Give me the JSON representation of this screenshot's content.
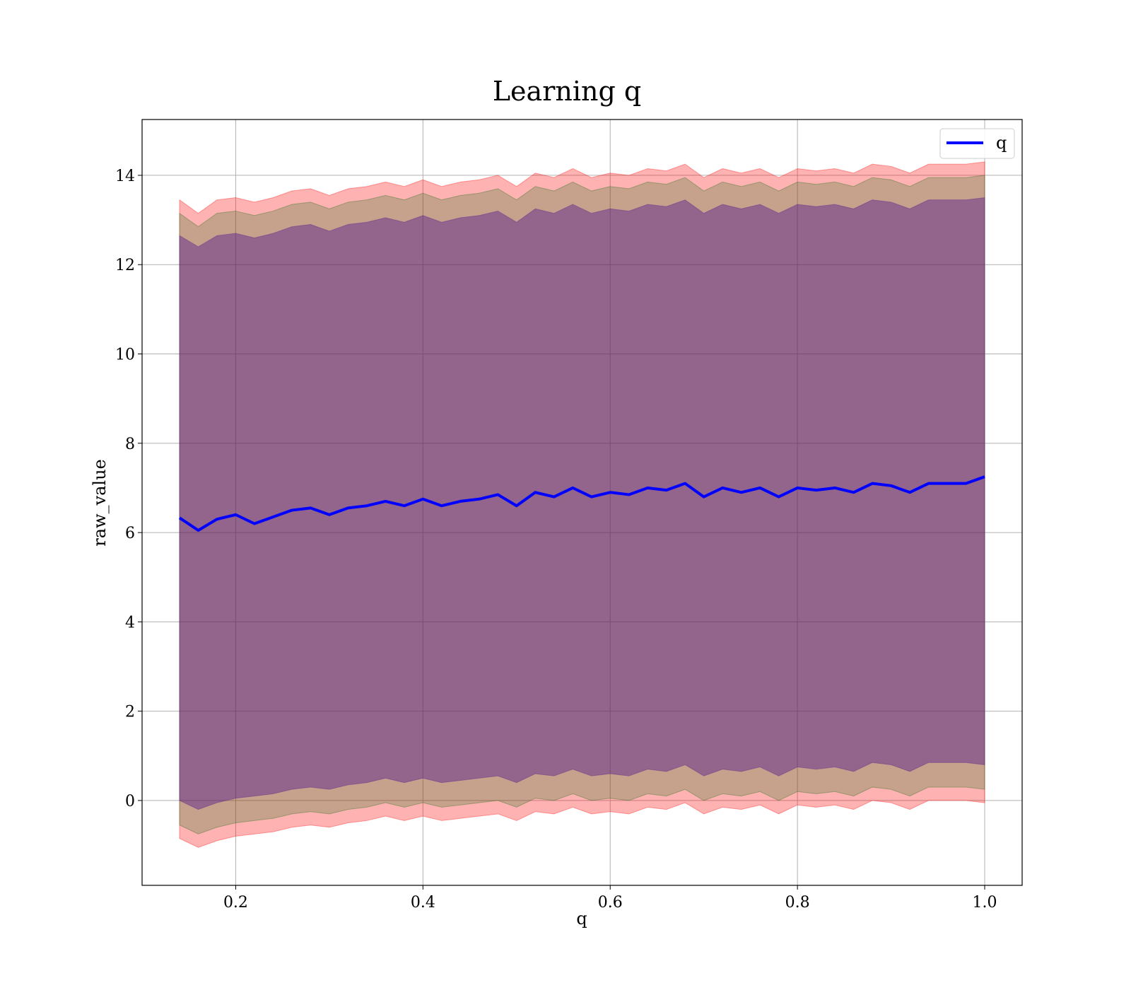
{
  "chart_data": {
    "type": "line",
    "title": "Learning q",
    "xlabel": "q",
    "ylabel": "raw_value",
    "xlim": [
      0.1,
      1.04
    ],
    "ylim": [
      -1.9,
      15.25
    ],
    "xticks": [
      0.2,
      0.4,
      0.6,
      0.8,
      1.0
    ],
    "xtick_labels": [
      "0.2",
      "0.4",
      "0.6",
      "0.8",
      "1.0"
    ],
    "yticks": [
      0,
      2,
      4,
      6,
      8,
      10,
      12,
      14
    ],
    "ytick_labels": [
      "0",
      "2",
      "4",
      "6",
      "8",
      "10",
      "12",
      "14"
    ],
    "grid": true,
    "legend": {
      "position": "top-right",
      "entries": [
        "q"
      ]
    },
    "series": [
      {
        "name": "q",
        "color": "#0000ff",
        "x": [
          0.14,
          0.16,
          0.18,
          0.2,
          0.22,
          0.24,
          0.26,
          0.28,
          0.3,
          0.32,
          0.34,
          0.36,
          0.38,
          0.4,
          0.42,
          0.44,
          0.46,
          0.48,
          0.5,
          0.52,
          0.54,
          0.56,
          0.58,
          0.6,
          0.62,
          0.64,
          0.66,
          0.68,
          0.7,
          0.72,
          0.74,
          0.76,
          0.78,
          0.8,
          0.82,
          0.84,
          0.86,
          0.88,
          0.9,
          0.92,
          0.94,
          0.96,
          0.98,
          1.0
        ],
        "y": [
          6.33,
          6.05,
          6.3,
          6.4,
          6.2,
          6.35,
          6.5,
          6.55,
          6.4,
          6.55,
          6.6,
          6.7,
          6.6,
          6.75,
          6.6,
          6.7,
          6.75,
          6.85,
          6.6,
          6.9,
          6.8,
          7.0,
          6.8,
          6.9,
          6.85,
          7.0,
          6.95,
          7.1,
          6.8,
          7.0,
          6.9,
          7.0,
          6.8,
          7.0,
          6.95,
          7.0,
          6.9,
          7.1,
          7.05,
          6.9,
          7.1,
          7.1,
          7.1,
          7.25
        ]
      }
    ],
    "bands": [
      {
        "color": "#ff0000",
        "opacity": 0.3,
        "x": [
          0.14,
          0.16,
          0.18,
          0.2,
          0.22,
          0.24,
          0.26,
          0.28,
          0.3,
          0.32,
          0.34,
          0.36,
          0.38,
          0.4,
          0.42,
          0.44,
          0.46,
          0.48,
          0.5,
          0.52,
          0.54,
          0.56,
          0.58,
          0.6,
          0.62,
          0.64,
          0.66,
          0.68,
          0.7,
          0.72,
          0.74,
          0.76,
          0.78,
          0.8,
          0.82,
          0.84,
          0.86,
          0.88,
          0.9,
          0.92,
          0.94,
          0.96,
          0.98,
          1.0
        ],
        "lower": [
          -0.85,
          -1.05,
          -0.9,
          -0.8,
          -0.75,
          -0.7,
          -0.6,
          -0.55,
          -0.6,
          -0.5,
          -0.45,
          -0.35,
          -0.45,
          -0.35,
          -0.45,
          -0.4,
          -0.35,
          -0.3,
          -0.45,
          -0.25,
          -0.3,
          -0.15,
          -0.3,
          -0.25,
          -0.3,
          -0.15,
          -0.2,
          -0.05,
          -0.3,
          -0.15,
          -0.2,
          -0.1,
          -0.3,
          -0.1,
          -0.15,
          -0.1,
          -0.2,
          0.0,
          -0.05,
          -0.2,
          0.0,
          0.0,
          0.0,
          -0.05
        ],
        "upper": [
          13.45,
          13.15,
          13.45,
          13.5,
          13.4,
          13.5,
          13.65,
          13.7,
          13.55,
          13.7,
          13.75,
          13.85,
          13.75,
          13.9,
          13.75,
          13.85,
          13.9,
          14.0,
          13.75,
          14.05,
          13.95,
          14.15,
          13.95,
          14.05,
          14.0,
          14.15,
          14.1,
          14.25,
          13.95,
          14.15,
          14.05,
          14.15,
          13.95,
          14.15,
          14.1,
          14.15,
          14.05,
          14.25,
          14.2,
          14.05,
          14.25,
          14.25,
          14.25,
          14.3
        ]
      },
      {
        "color": "#1a6f1a",
        "opacity": 0.25,
        "x": [
          0.14,
          0.16,
          0.18,
          0.2,
          0.22,
          0.24,
          0.26,
          0.28,
          0.3,
          0.32,
          0.34,
          0.36,
          0.38,
          0.4,
          0.42,
          0.44,
          0.46,
          0.48,
          0.5,
          0.52,
          0.54,
          0.56,
          0.58,
          0.6,
          0.62,
          0.64,
          0.66,
          0.68,
          0.7,
          0.72,
          0.74,
          0.76,
          0.78,
          0.8,
          0.82,
          0.84,
          0.86,
          0.88,
          0.9,
          0.92,
          0.94,
          0.96,
          0.98,
          1.0
        ],
        "lower": [
          -0.55,
          -0.75,
          -0.6,
          -0.5,
          -0.45,
          -0.4,
          -0.3,
          -0.25,
          -0.3,
          -0.2,
          -0.15,
          -0.05,
          -0.15,
          -0.05,
          -0.15,
          -0.1,
          -0.05,
          0.0,
          -0.15,
          0.05,
          0.0,
          0.15,
          0.0,
          0.05,
          0.0,
          0.15,
          0.1,
          0.25,
          0.0,
          0.15,
          0.1,
          0.2,
          0.0,
          0.2,
          0.15,
          0.2,
          0.1,
          0.3,
          0.25,
          0.1,
          0.3,
          0.3,
          0.3,
          0.25
        ],
        "upper": [
          13.15,
          12.85,
          13.15,
          13.2,
          13.1,
          13.2,
          13.35,
          13.4,
          13.25,
          13.4,
          13.45,
          13.55,
          13.45,
          13.6,
          13.45,
          13.55,
          13.6,
          13.7,
          13.45,
          13.75,
          13.65,
          13.85,
          13.65,
          13.75,
          13.7,
          13.85,
          13.8,
          13.95,
          13.65,
          13.85,
          13.75,
          13.85,
          13.65,
          13.85,
          13.8,
          13.85,
          13.75,
          13.95,
          13.9,
          13.75,
          13.95,
          13.95,
          13.95,
          14.0
        ]
      },
      {
        "color": "#551a8b",
        "opacity": 0.45,
        "x": [
          0.14,
          0.16,
          0.18,
          0.2,
          0.22,
          0.24,
          0.26,
          0.28,
          0.3,
          0.32,
          0.34,
          0.36,
          0.38,
          0.4,
          0.42,
          0.44,
          0.46,
          0.48,
          0.5,
          0.52,
          0.54,
          0.56,
          0.58,
          0.6,
          0.62,
          0.64,
          0.66,
          0.68,
          0.7,
          0.72,
          0.74,
          0.76,
          0.78,
          0.8,
          0.82,
          0.84,
          0.86,
          0.88,
          0.9,
          0.92,
          0.94,
          0.96,
          0.98,
          1.0
        ],
        "lower": [
          0.0,
          -0.2,
          -0.05,
          0.05,
          0.1,
          0.15,
          0.25,
          0.3,
          0.25,
          0.35,
          0.4,
          0.5,
          0.4,
          0.5,
          0.4,
          0.45,
          0.5,
          0.55,
          0.4,
          0.6,
          0.55,
          0.7,
          0.55,
          0.6,
          0.55,
          0.7,
          0.65,
          0.8,
          0.55,
          0.7,
          0.65,
          0.75,
          0.55,
          0.75,
          0.7,
          0.75,
          0.65,
          0.85,
          0.8,
          0.65,
          0.85,
          0.85,
          0.85,
          0.8
        ],
        "upper": [
          12.65,
          12.4,
          12.65,
          12.7,
          12.6,
          12.7,
          12.85,
          12.9,
          12.75,
          12.9,
          12.95,
          13.05,
          12.95,
          13.1,
          12.95,
          13.05,
          13.1,
          13.2,
          12.95,
          13.25,
          13.15,
          13.35,
          13.15,
          13.25,
          13.2,
          13.35,
          13.3,
          13.45,
          13.15,
          13.35,
          13.25,
          13.35,
          13.15,
          13.35,
          13.3,
          13.35,
          13.25,
          13.45,
          13.4,
          13.25,
          13.45,
          13.45,
          13.45,
          13.5
        ]
      }
    ]
  }
}
